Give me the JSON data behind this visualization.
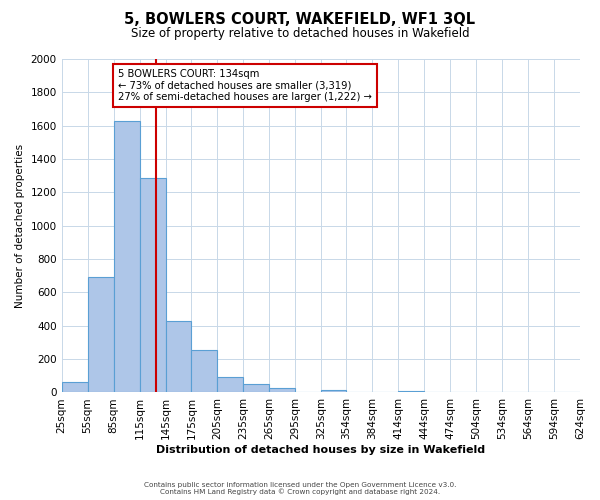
{
  "title": "5, BOWLERS COURT, WAKEFIELD, WF1 3QL",
  "subtitle": "Size of property relative to detached houses in Wakefield",
  "xlabel": "Distribution of detached houses by size in Wakefield",
  "ylabel": "Number of detached properties",
  "bin_edges": [
    25,
    55,
    85,
    115,
    145,
    175,
    205,
    235,
    265,
    295,
    325,
    354,
    384,
    414,
    444,
    474,
    504,
    534,
    564,
    594,
    624
  ],
  "bar_heights": [
    65,
    690,
    1630,
    1285,
    430,
    255,
    90,
    50,
    25,
    0,
    15,
    0,
    0,
    10,
    0,
    0,
    0,
    0,
    0,
    0
  ],
  "bar_color": "#aec6e8",
  "bar_edge_color": "#5a9fd4",
  "vline_x": 134,
  "vline_color": "#cc0000",
  "annotation_title": "5 BOWLERS COURT: 134sqm",
  "annotation_line1": "← 73% of detached houses are smaller (3,319)",
  "annotation_line2": "27% of semi-detached houses are larger (1,222) →",
  "annotation_box_color": "#ffffff",
  "annotation_box_edge": "#cc0000",
  "ylim": [
    0,
    2000
  ],
  "yticks": [
    0,
    200,
    400,
    600,
    800,
    1000,
    1200,
    1400,
    1600,
    1800,
    2000
  ],
  "x_tick_labels": [
    "25sqm",
    "55sqm",
    "85sqm",
    "115sqm",
    "145sqm",
    "175sqm",
    "205sqm",
    "235sqm",
    "265sqm",
    "295sqm",
    "325sqm",
    "354sqm",
    "384sqm",
    "414sqm",
    "444sqm",
    "474sqm",
    "504sqm",
    "534sqm",
    "564sqm",
    "594sqm",
    "624sqm"
  ],
  "footer1": "Contains HM Land Registry data © Crown copyright and database right 2024.",
  "footer2": "Contains public sector information licensed under the Open Government Licence v3.0.",
  "bg_color": "#ffffff",
  "grid_color": "#c8d8e8"
}
